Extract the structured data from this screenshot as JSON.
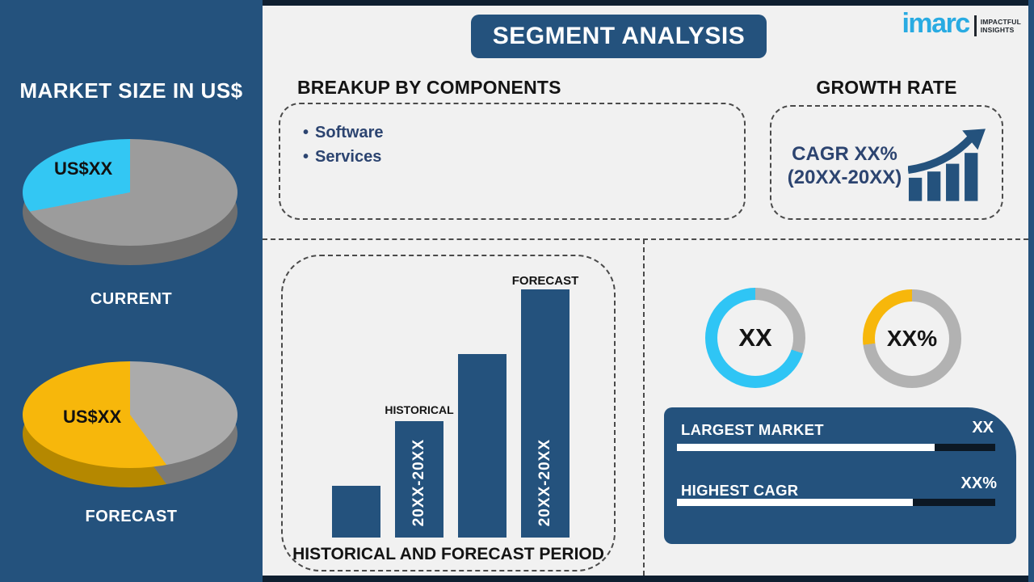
{
  "colors": {
    "navy": "#24527D",
    "strip": "#0F1F30",
    "bg": "#F1F1F1",
    "cyan": "#33C7F3",
    "yellow": "#F7B70B",
    "pie_gray": "#9C9C9C",
    "donut_gray": "#B2B2B2",
    "navy_text": "#2C4470",
    "logo_cyan": "#29ABE2"
  },
  "sidebar": {
    "title": "MARKET SIZE IN US$",
    "current_label": "CURRENT",
    "forecast_label": "FORECAST"
  },
  "header": {
    "title": "SEGMENT ANALYSIS"
  },
  "logo": {
    "wordmark": "imarc",
    "tagline_line1": "IMPACTFUL",
    "tagline_line2": "INSIGHTS"
  },
  "breakup": {
    "title": "BREAKUP BY COMPONENTS",
    "items": [
      "Software",
      "Services"
    ]
  },
  "growth": {
    "title": "GROWTH RATE",
    "cagr_line1": "CAGR XX%",
    "cagr_line2": "(20XX-20XX)"
  },
  "chart_data": [
    {
      "id": "pie-current",
      "type": "pie",
      "caption": "CURRENT",
      "slice_label": "US$XX",
      "slices": [
        {
          "name": "value",
          "pct": 28,
          "color": "#33C7F3"
        },
        {
          "name": "remainder",
          "pct": 72,
          "color": "#9C9C9C"
        }
      ],
      "depth_colors": [
        "#747474",
        "#747474"
      ],
      "note": "3D pie; highlighted cyan slice occupies the top-left quadrant"
    },
    {
      "id": "pie-forecast",
      "type": "pie",
      "caption": "FORECAST",
      "slice_label": "US$XX",
      "slices": [
        {
          "name": "value",
          "pct": 60,
          "color": "#F7B70B"
        },
        {
          "name": "remainder",
          "pct": 40,
          "color": "#ABABAB"
        }
      ],
      "depth_colors": [
        "#7E7E7E",
        "#BD8E00"
      ],
      "note": "3D pie; yellow slice sweeps from top counter-clockwise to lower right"
    },
    {
      "id": "historical-forecast-bars",
      "type": "bar",
      "title": "HISTORICAL AND FORECAST PERIOD",
      "values": [
        21,
        47,
        74,
        100
      ],
      "bar_texts": [
        "",
        "20XX-20XX",
        "",
        "20XX-20XX"
      ],
      "annotations": [
        "",
        "HISTORICAL",
        "",
        "FORECAST"
      ],
      "bar_color": "#24527D",
      "ylim": [
        0,
        100
      ]
    },
    {
      "id": "donut-largest-market",
      "type": "donut",
      "center_label": "XX",
      "slices": [
        {
          "name": "remainder",
          "pct": 30,
          "color": "#B2B2B2"
        },
        {
          "name": "value",
          "pct": 70,
          "color": "#2FC5F5"
        }
      ]
    },
    {
      "id": "donut-highest-cagr",
      "type": "donut",
      "center_label": "XX%",
      "slices": [
        {
          "name": "remainder",
          "pct": 73,
          "color": "#B2B2B2"
        },
        {
          "name": "value",
          "pct": 27,
          "color": "#F7B70B"
        }
      ]
    },
    {
      "id": "largest-market-progress",
      "type": "progress",
      "label": "LARGEST MARKET",
      "value_label": "XX",
      "pct": 81
    },
    {
      "id": "highest-cagr-progress",
      "type": "progress",
      "label": "HIGHEST CAGR",
      "value_label": "XX%",
      "pct": 74
    }
  ]
}
